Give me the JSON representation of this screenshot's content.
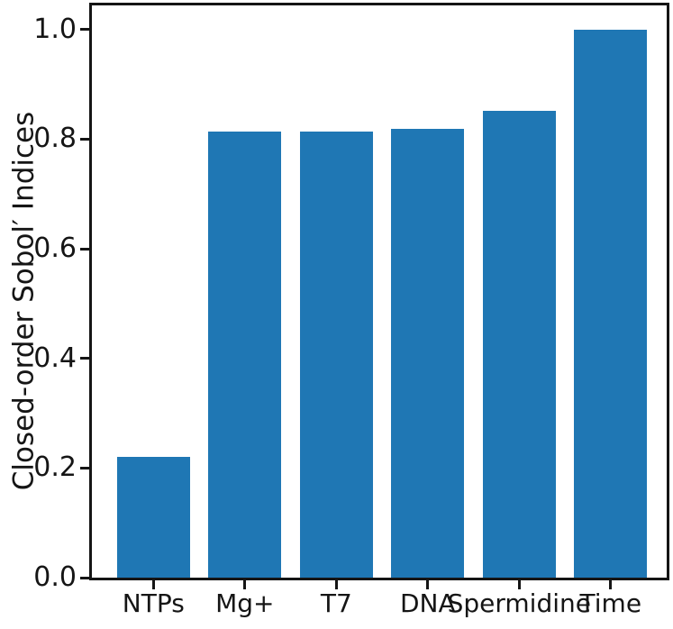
{
  "chart_data": {
    "type": "bar",
    "categories": [
      "NTPs",
      "Mg+",
      "T7",
      "DNA",
      "Spermidine",
      "Time"
    ],
    "values": [
      0.22,
      0.814,
      0.814,
      0.818,
      0.852,
      1.0
    ],
    "ylabel": "Closed-order Sobol′ Indices",
    "ylim": [
      0,
      1.044
    ],
    "xlim": [
      -0.673,
      5.613
    ],
    "yticks": [
      0,
      0.2,
      0.4,
      0.6,
      0.8,
      1.0
    ],
    "ytick_labels": [
      "0.0",
      "0.2",
      "0.4",
      "0.6",
      "0.8",
      "1.0"
    ],
    "bar_color": "#1f77b4",
    "bar_width_ratio": 0.8,
    "grid": false,
    "legend": "none",
    "axis_color": "#151515",
    "background": "#ffffff"
  }
}
